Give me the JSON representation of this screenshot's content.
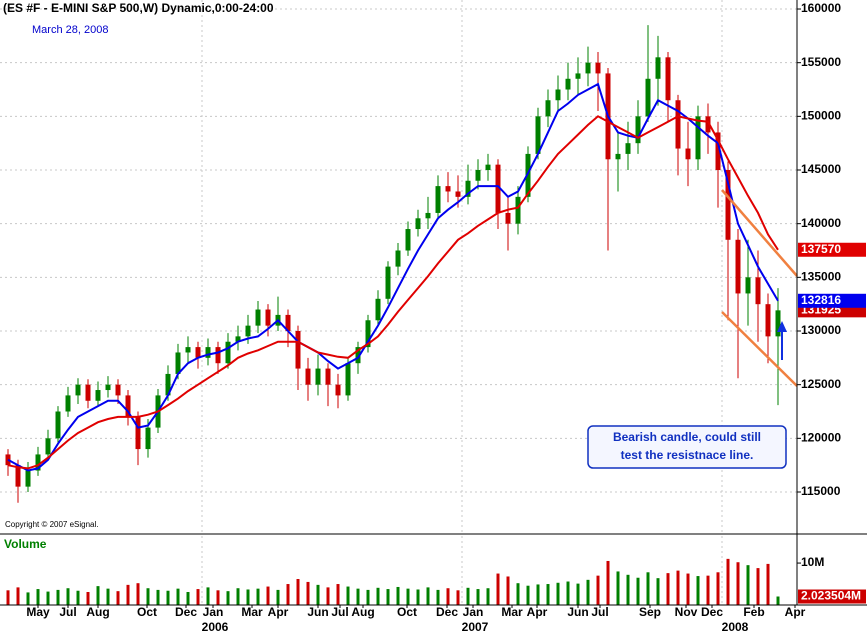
{
  "chart_data": {
    "type": "candlestick",
    "title": "(ES #F - E-MINI S&P 500,W) Dynamic,0:00-24:00",
    "date_label": "March 28, 2008",
    "copyright": "Copyright © 2007 eSignal.",
    "annotation": [
      "Bearish candle, could still",
      "test the resistnace line."
    ],
    "up_color": "#008000",
    "down_color": "#cc0000",
    "open": [
      118500,
      117500,
      115500,
      117000,
      118500,
      120000,
      122500,
      124000,
      125000,
      123500,
      124500,
      125000,
      124000,
      122000,
      119000,
      121000,
      124000,
      126000,
      128000,
      128500,
      127500,
      128500,
      127000,
      129000,
      129500,
      130500,
      132000,
      130500,
      131500,
      130000,
      126500,
      125000,
      126500,
      125000,
      124000,
      127000,
      128500,
      131000,
      133000,
      136000,
      137500,
      139500,
      140500,
      141000,
      143500,
      143000,
      142500,
      144000,
      145000,
      145500,
      141000,
      140000,
      142500,
      146500,
      150000,
      151500,
      152500,
      153500,
      154000,
      155000,
      154000,
      146000,
      146500,
      147500,
      150000,
      153500,
      155500,
      151500,
      147000,
      146000,
      150000,
      148500,
      145000,
      138500,
      133500,
      135000,
      132500,
      129500
    ],
    "high": [
      119000,
      118000,
      117800,
      119200,
      120800,
      123000,
      124800,
      125600,
      125500,
      125300,
      125800,
      125500,
      124500,
      122500,
      121800,
      124600,
      126800,
      128800,
      129500,
      129000,
      129300,
      129000,
      129800,
      130500,
      131500,
      132800,
      132500,
      133200,
      132000,
      130500,
      127500,
      127800,
      127000,
      126000,
      127500,
      129000,
      131500,
      133800,
      136500,
      138200,
      140200,
      141300,
      142500,
      144500,
      144800,
      144500,
      145500,
      146000,
      146500,
      146000,
      142500,
      143500,
      147200,
      150800,
      152500,
      153800,
      155000,
      155500,
      156500,
      156000,
      154500,
      148500,
      149500,
      151500,
      158500,
      157500,
      156000,
      152000,
      149500,
      151000,
      151200,
      149500,
      145800,
      139500,
      138500,
      137500,
      133500,
      134000
    ],
    "low": [
      116500,
      114000,
      115000,
      116500,
      118000,
      119500,
      122000,
      123200,
      122800,
      123000,
      123800,
      123200,
      121200,
      117500,
      118200,
      120500,
      123500,
      125500,
      127000,
      126500,
      126800,
      126000,
      126500,
      128200,
      128800,
      129800,
      129500,
      130000,
      128500,
      124500,
      123500,
      124000,
      123000,
      122800,
      123500,
      126000,
      128000,
      130500,
      132500,
      135200,
      137000,
      138800,
      139500,
      140500,
      142000,
      141500,
      141800,
      143200,
      144000,
      139500,
      137500,
      139000,
      142000,
      146000,
      149000,
      150500,
      151500,
      152000,
      152800,
      150500,
      137500,
      143000,
      145000,
      146500,
      149500,
      151000,
      149500,
      144500,
      143500,
      145000,
      146500,
      141500,
      131000,
      125600,
      130500,
      129000,
      127000,
      123100
    ],
    "close": [
      117500,
      115500,
      117000,
      118500,
      120000,
      122500,
      124000,
      125000,
      123500,
      124500,
      125000,
      124000,
      122000,
      119000,
      121000,
      124000,
      126000,
      128000,
      128500,
      127500,
      128500,
      127000,
      129000,
      129500,
      130500,
      132000,
      130500,
      131500,
      130000,
      126500,
      125000,
      126500,
      125000,
      124000,
      127000,
      128500,
      131000,
      133000,
      136000,
      137500,
      139500,
      140500,
      141000,
      143500,
      143000,
      142500,
      144000,
      145000,
      145500,
      141000,
      140000,
      142500,
      146500,
      150000,
      151500,
      152500,
      153500,
      154000,
      155000,
      154000,
      146000,
      146500,
      147500,
      150000,
      153500,
      155500,
      151500,
      147000,
      146000,
      150000,
      148500,
      145000,
      138500,
      133500,
      135000,
      132500,
      129500,
      131925
    ],
    "moving_averages": [
      {
        "color": "#0000ee",
        "values": [
          118000,
          117500,
          117000,
          117200,
          118000,
          119500,
          120800,
          122000,
          122500,
          123000,
          123500,
          123500,
          122500,
          121000,
          121200,
          122500,
          124000,
          126000,
          127000,
          127500,
          127800,
          128000,
          128400,
          129000,
          129300,
          129500,
          130200,
          131000,
          130000,
          129000,
          128500,
          128000,
          127200,
          126500,
          127000,
          127500,
          129000,
          130500,
          132200,
          134000,
          135800,
          137500,
          139000,
          140500,
          141300,
          142000,
          142800,
          143500,
          143500,
          143500,
          142500,
          143000,
          144700,
          146500,
          148500,
          150500,
          151200,
          152000,
          152500,
          153000,
          150000,
          148500,
          148200,
          148000,
          149800,
          151500,
          151000,
          150500,
          149800,
          149000,
          148200,
          147500,
          143800,
          140000,
          138000,
          136000,
          134400,
          132816
        ]
      },
      {
        "color": "#e00000",
        "values": [
          117500,
          117300,
          117200,
          117500,
          118200,
          119000,
          119800,
          120500,
          121000,
          121500,
          121800,
          122000,
          122000,
          122000,
          122200,
          122500,
          123100,
          123700,
          124400,
          125000,
          125600,
          126200,
          126800,
          127500,
          127900,
          128200,
          128600,
          129000,
          129000,
          129000,
          128500,
          128000,
          127800,
          127600,
          127500,
          128200,
          128800,
          129500,
          130600,
          131800,
          132900,
          134000,
          135100,
          136300,
          137400,
          138500,
          139100,
          139800,
          140400,
          141000,
          141300,
          141500,
          142800,
          144000,
          145300,
          146500,
          147400,
          148300,
          149200,
          150000,
          149500,
          149000,
          148500,
          148000,
          148500,
          149000,
          149500,
          150000,
          149800,
          149600,
          149500,
          147800,
          146000,
          144300,
          142600,
          141000,
          139000,
          137570
        ]
      }
    ],
    "xlim": [
      -0.5,
      78.9
    ],
    "xticks": [
      {
        "value": 3.0,
        "label": "May"
      },
      {
        "value": 6.0,
        "label": "Jul"
      },
      {
        "value": 9.0,
        "label": "Aug"
      },
      {
        "value": 13.9,
        "label": "Oct"
      },
      {
        "value": 17.8,
        "label": "Dec"
      },
      {
        "value": 20.5,
        "label": "Jan"
      },
      {
        "value": 24.4,
        "label": "Mar"
      },
      {
        "value": 27.0,
        "label": "Apr"
      },
      {
        "value": 31.0,
        "label": "Jun"
      },
      {
        "value": 33.2,
        "label": "Jul"
      },
      {
        "value": 35.5,
        "label": "Aug"
      },
      {
        "value": 39.9,
        "label": "Oct"
      },
      {
        "value": 43.9,
        "label": "Dec"
      },
      {
        "value": 46.5,
        "label": "Jan"
      },
      {
        "value": 50.4,
        "label": "Mar"
      },
      {
        "value": 52.9,
        "label": "Apr"
      },
      {
        "value": 57.0,
        "label": "Jun"
      },
      {
        "value": 59.2,
        "label": "Jul"
      },
      {
        "value": 64.2,
        "label": "Sep"
      },
      {
        "value": 67.8,
        "label": "Nov"
      },
      {
        "value": 70.4,
        "label": "Dec"
      },
      {
        "value": 74.6,
        "label": "Feb"
      },
      {
        "value": 78.7,
        "label": "Apr"
      }
    ],
    "year_ticks": [
      {
        "value": 19.4,
        "label": "2006"
      },
      {
        "value": 45.4,
        "label": "2007"
      },
      {
        "value": 71.4,
        "label": "2008"
      }
    ],
    "ylim": [
      111180,
      160840
    ],
    "yticks": [
      115000,
      120000,
      125000,
      130000,
      135000,
      140000,
      145000,
      150000,
      155000,
      160000
    ],
    "grid": true,
    "volume": {
      "title": "Volume",
      "ylim": [
        0,
        15.5
      ],
      "yticks": [
        {
          "value": 10,
          "label": "10M"
        }
      ],
      "values": [
        3.5,
        4.2,
        3.0,
        3.8,
        3.2,
        3.6,
        4.0,
        3.4,
        3.1,
        4.5,
        3.9,
        3.3,
        4.8,
        5.2,
        4.0,
        3.6,
        3.4,
        3.9,
        3.1,
        3.8,
        4.2,
        3.5,
        3.3,
        4.0,
        3.7,
        3.9,
        4.4,
        3.6,
        5.0,
        6.2,
        5.5,
        4.8,
        4.2,
        5.0,
        4.4,
        3.9,
        3.6,
        4.1,
        3.8,
        4.3,
        3.9,
        3.7,
        4.2,
        3.6,
        4.0,
        3.5,
        4.1,
        3.8,
        4.0,
        7.5,
        6.8,
        5.2,
        4.6,
        4.9,
        5.0,
        5.3,
        5.6,
        5.1,
        6.0,
        7.0,
        10.5,
        8.0,
        7.2,
        6.5,
        7.8,
        6.4,
        7.6,
        8.2,
        7.5,
        6.9,
        7.0,
        7.8,
        11.0,
        10.2,
        9.5,
        8.8,
        9.8,
        2.023504
      ],
      "last_value_label": "2.023504M"
    }
  }
}
